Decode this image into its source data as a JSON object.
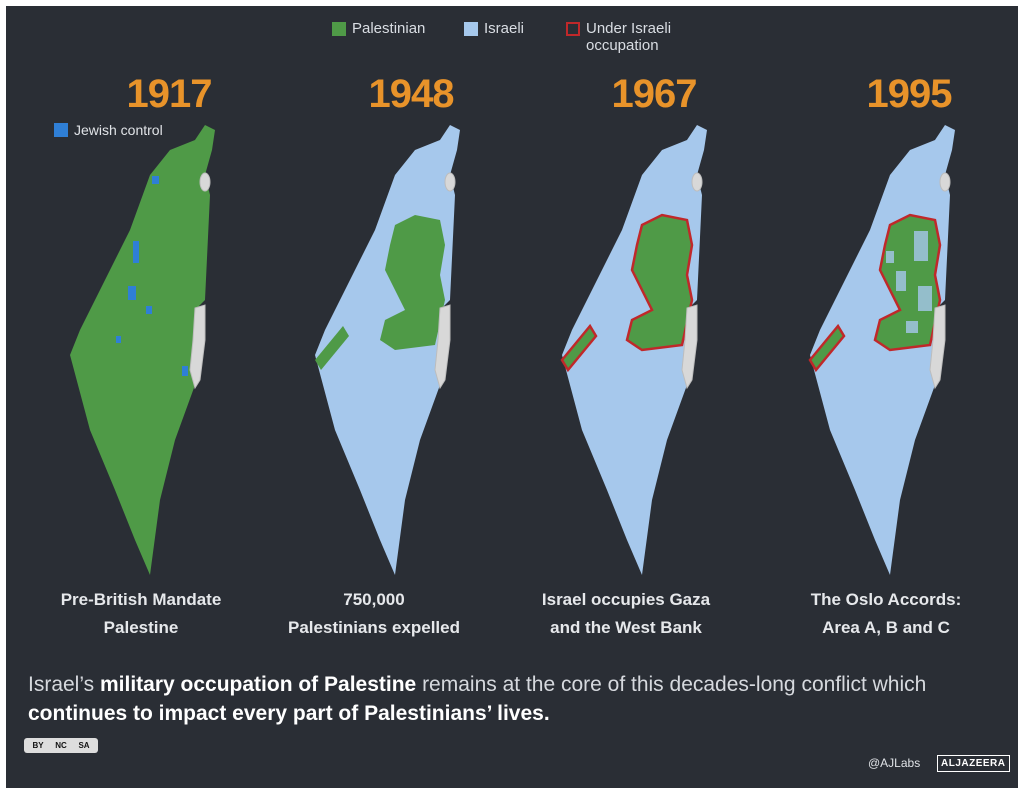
{
  "legend": {
    "items": [
      {
        "label": "Palestinian",
        "color": "#4f9a47"
      },
      {
        "label": "Israeli",
        "color": "#a6c8ec"
      },
      {
        "label": "Under Israeli occupation",
        "color": "#c0282a"
      }
    ]
  },
  "panels": [
    {
      "year": "1917",
      "caption": [
        "Pre-British Mandate",
        "Palestine"
      ],
      "note": {
        "label": "Jewish control",
        "color": "#2f7fd6"
      }
    },
    {
      "year": "1948",
      "caption": [
        "750,000",
        "Palestinians expelled"
      ]
    },
    {
      "year": "1967",
      "caption": [
        "Israel occupies Gaza",
        "and the West Bank"
      ]
    },
    {
      "year": "1995",
      "caption": [
        "The Oslo Accords:",
        "Area A, B and C"
      ]
    }
  ],
  "footer": {
    "segments": [
      {
        "text": "Israel’s ",
        "bold": false
      },
      {
        "text": "military occupation of Palestine",
        "bold": true
      },
      {
        "text": " remains at the core of this decades-long conflict which ",
        "bold": false
      },
      {
        "text": "continues to impact every part of Palestinians’ lives.",
        "bold": true
      }
    ]
  },
  "credits": {
    "license": [
      "BY",
      "NC",
      "SA"
    ],
    "handle": "@AJLabs",
    "brand": "ALJAZEERA"
  }
}
